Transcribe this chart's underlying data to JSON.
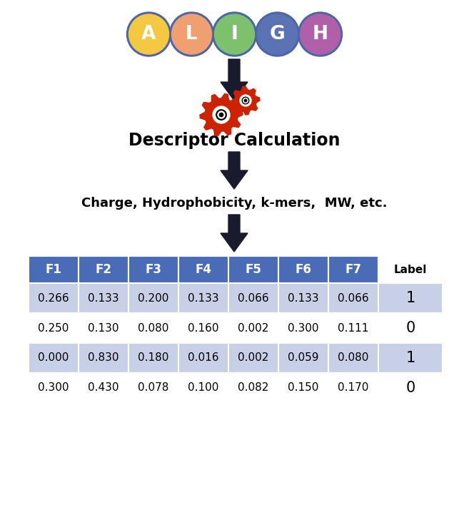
{
  "letters": [
    "A",
    "L",
    "I",
    "G",
    "H"
  ],
  "circle_colors": [
    "#F5C842",
    "#F0A070",
    "#7DC16E",
    "#5B73B5",
    "#B060A8"
  ],
  "circle_border": "#4A65A8",
  "letter_color": "#FFFFFF",
  "arrow_color": "#1A1A2E",
  "desc_calc_text": "Descriptor Calculation",
  "descriptors_text": "Charge, Hydrophobicity, k-mers,  MW, etc.",
  "table_headers": [
    "F1",
    "F2",
    "F3",
    "F4",
    "F5",
    "F6",
    "F7",
    "Label"
  ],
  "table_header_bg": "#4A6BB5",
  "table_header_text": "#FFFFFF",
  "table_row_bg_odd": "#C8D0E8",
  "table_row_bg_even": "#FFFFFF",
  "table_data": [
    [
      "0.266",
      "0.133",
      "0.200",
      "0.133",
      "0.066",
      "0.133",
      "0.066",
      "1"
    ],
    [
      "0.250",
      "0.130",
      "0.080",
      "0.160",
      "0.002",
      "0.300",
      "0.111",
      "0"
    ],
    [
      "0.000",
      "0.830",
      "0.180",
      "0.016",
      "0.002",
      "0.059",
      "0.080",
      "1"
    ],
    [
      "0.300",
      "0.430",
      "0.078",
      "0.100",
      "0.082",
      "0.150",
      "0.170",
      "0"
    ]
  ],
  "bg_color": "#FFFFFF",
  "fig_width": 6.57,
  "fig_height": 7.25,
  "dpi": 100
}
